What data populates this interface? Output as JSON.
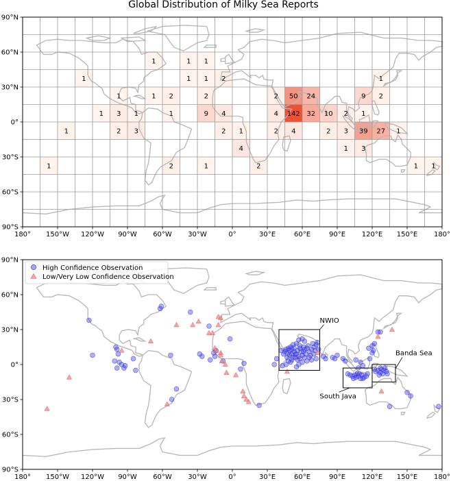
{
  "chart_data": [
    {
      "type": "heatmap",
      "title": "Global Distribution of Milky Sea Reports",
      "xlabel": "",
      "ylabel": "",
      "xlim": [
        -180,
        180
      ],
      "ylim": [
        -90,
        90
      ],
      "cell_size_deg": 15,
      "x_ticks": [
        "180°",
        "150°W",
        "120°W",
        "90°W",
        "60°W",
        "30°W",
        "0°",
        "30°E",
        "60°E",
        "90°E",
        "120°E",
        "150°E",
        "180°"
      ],
      "y_ticks": [
        "90°N",
        "60°N",
        "30°N",
        "0°",
        "30°S",
        "60°S",
        "90°S"
      ],
      "max_count": 142,
      "cells": [
        {
          "lon0": -75,
          "lat0": 45,
          "count": 1
        },
        {
          "lon0": -45,
          "lat0": 45,
          "count": 1
        },
        {
          "lon0": -30,
          "lat0": 45,
          "count": 1
        },
        {
          "lon0": -135,
          "lat0": 30,
          "count": 1
        },
        {
          "lon0": -45,
          "lat0": 30,
          "count": 1
        },
        {
          "lon0": -30,
          "lat0": 30,
          "count": 1
        },
        {
          "lon0": -15,
          "lat0": 30,
          "count": 2
        },
        {
          "lon0": 120,
          "lat0": 30,
          "count": 1
        },
        {
          "lon0": -105,
          "lat0": 15,
          "count": 1
        },
        {
          "lon0": -75,
          "lat0": 15,
          "count": 1
        },
        {
          "lon0": -60,
          "lat0": 15,
          "count": 2
        },
        {
          "lon0": -30,
          "lat0": 15,
          "count": 2
        },
        {
          "lon0": 30,
          "lat0": 15,
          "count": 2
        },
        {
          "lon0": 45,
          "lat0": 15,
          "count": 50
        },
        {
          "lon0": 60,
          "lat0": 15,
          "count": 24
        },
        {
          "lon0": 105,
          "lat0": 15,
          "count": 9
        },
        {
          "lon0": 120,
          "lat0": 15,
          "count": 2
        },
        {
          "lon0": -120,
          "lat0": 0,
          "count": 1
        },
        {
          "lon0": -105,
          "lat0": 0,
          "count": 3
        },
        {
          "lon0": -90,
          "lat0": 0,
          "count": 1
        },
        {
          "lon0": -60,
          "lat0": 0,
          "count": 1
        },
        {
          "lon0": -30,
          "lat0": 0,
          "count": 9
        },
        {
          "lon0": -15,
          "lat0": 0,
          "count": 4
        },
        {
          "lon0": 30,
          "lat0": 0,
          "count": 4
        },
        {
          "lon0": 45,
          "lat0": 0,
          "count": 142
        },
        {
          "lon0": 60,
          "lat0": 0,
          "count": 32
        },
        {
          "lon0": 75,
          "lat0": 0,
          "count": 10
        },
        {
          "lon0": 90,
          "lat0": 0,
          "count": 2
        },
        {
          "lon0": 105,
          "lat0": 0,
          "count": 1
        },
        {
          "lon0": -150,
          "lat0": -15,
          "count": 1
        },
        {
          "lon0": -105,
          "lat0": -15,
          "count": 2
        },
        {
          "lon0": -90,
          "lat0": -15,
          "count": 3
        },
        {
          "lon0": -15,
          "lat0": -15,
          "count": 2
        },
        {
          "lon0": 0,
          "lat0": -15,
          "count": 1
        },
        {
          "lon0": 30,
          "lat0": -15,
          "count": 2
        },
        {
          "lon0": 45,
          "lat0": -15,
          "count": 4
        },
        {
          "lon0": 75,
          "lat0": -15,
          "count": 2
        },
        {
          "lon0": 90,
          "lat0": -15,
          "count": 3
        },
        {
          "lon0": 105,
          "lat0": -15,
          "count": 39
        },
        {
          "lon0": 120,
          "lat0": -15,
          "count": 27
        },
        {
          "lon0": 135,
          "lat0": -15,
          "count": 1
        },
        {
          "lon0": 0,
          "lat0": -30,
          "count": 4
        },
        {
          "lon0": 90,
          "lat0": -30,
          "count": 1
        },
        {
          "lon0": 105,
          "lat0": -30,
          "count": 3
        },
        {
          "lon0": -165,
          "lat0": -45,
          "count": 1
        },
        {
          "lon0": -60,
          "lat0": -45,
          "count": 2
        },
        {
          "lon0": -30,
          "lat0": -45,
          "count": 1
        },
        {
          "lon0": 15,
          "lat0": -45,
          "count": 2
        },
        {
          "lon0": 150,
          "lat0": -45,
          "count": 1
        },
        {
          "lon0": 165,
          "lat0": -45,
          "count": 1
        }
      ]
    },
    {
      "type": "scatter",
      "title": "",
      "xlim": [
        -180,
        180
      ],
      "ylim": [
        -90,
        90
      ],
      "x_ticks": [
        "180°",
        "150°W",
        "120°W",
        "90°W",
        "60°W",
        "30°W",
        "0°",
        "30°E",
        "60°E",
        "90°E",
        "120°E",
        "150°E",
        "180°"
      ],
      "y_ticks": [
        "90°N",
        "60°N",
        "30°N",
        "0°",
        "30°S",
        "60°S",
        "90°S"
      ],
      "legend": {
        "location": "upper-left",
        "entries": [
          "High Confidence Observation",
          "Low/Very Low Confidence Observation"
        ]
      },
      "series": [
        {
          "name": "High Confidence Observation",
          "marker": "circle",
          "color": "#3a3ae8",
          "points": [
            [
              -123,
              38
            ],
            [
              -120,
              8
            ],
            [
              -100,
              15
            ],
            [
              -99,
              13
            ],
            [
              -98,
              9
            ],
            [
              -101,
              3
            ],
            [
              -97,
              2
            ],
            [
              -95,
              0
            ],
            [
              -92,
              -1
            ],
            [
              -99,
              -3
            ],
            [
              -93,
              -3
            ],
            [
              -85,
              5
            ],
            [
              -83,
              -5
            ],
            [
              -61,
              50
            ],
            [
              -62,
              48
            ],
            [
              -53,
              8
            ],
            [
              -48,
              -21
            ],
            [
              -52,
              -30
            ],
            [
              -36,
              45
            ],
            [
              -20,
              33
            ],
            [
              -28,
              9
            ],
            [
              -26,
              7
            ],
            [
              -19,
              4
            ],
            [
              -14,
              12
            ],
            [
              -16,
              10
            ],
            [
              -15,
              7
            ],
            [
              -2,
              22
            ],
            [
              -8,
              3
            ],
            [
              10,
              1
            ],
            [
              7,
              -4
            ],
            [
              23,
              -35
            ],
            [
              38,
              5
            ],
            [
              36,
              0
            ],
            [
              46,
              13
            ],
            [
              50,
              15
            ],
            [
              52,
              17
            ],
            [
              55,
              18
            ],
            [
              57,
              21
            ],
            [
              60,
              22
            ],
            [
              62,
              20
            ],
            [
              58,
              14
            ],
            [
              56,
              12
            ],
            [
              53,
              11
            ],
            [
              51,
              9
            ],
            [
              49,
              8
            ],
            [
              47,
              6
            ],
            [
              48,
              3
            ],
            [
              51,
              4
            ],
            [
              54,
              6
            ],
            [
              57,
              7
            ],
            [
              60,
              8
            ],
            [
              63,
              9
            ],
            [
              66,
              11
            ],
            [
              68,
              13
            ],
            [
              70,
              15
            ],
            [
              72,
              17
            ],
            [
              73,
              19
            ],
            [
              69,
              18
            ],
            [
              65,
              16
            ],
            [
              62,
              13
            ],
            [
              59,
              11
            ],
            [
              55,
              9
            ],
            [
              52,
              6
            ],
            [
              50,
              2
            ],
            [
              46,
              0
            ],
            [
              43,
              -1
            ],
            [
              45,
              11
            ],
            [
              47,
              10
            ],
            [
              49,
              12
            ],
            [
              53,
              14
            ],
            [
              58,
              16
            ],
            [
              61,
              15
            ],
            [
              64,
              14
            ],
            [
              67,
              8
            ],
            [
              70,
              9
            ],
            [
              72,
              5
            ],
            [
              68,
              4
            ],
            [
              64,
              3
            ],
            [
              60,
              2
            ],
            [
              57,
              0
            ],
            [
              55,
              -2
            ],
            [
              51,
              13
            ],
            [
              54,
              9
            ],
            [
              56,
              4
            ],
            [
              62,
              6
            ],
            [
              66,
              6
            ],
            [
              71,
              12
            ],
            [
              74,
              13
            ],
            [
              48,
              14
            ],
            [
              44,
              9
            ],
            [
              42,
              12
            ],
            [
              58,
              5
            ],
            [
              61,
              11
            ],
            [
              78,
              7
            ],
            [
              80,
              5
            ],
            [
              86,
              6
            ],
            [
              88,
              5
            ],
            [
              90,
              8
            ],
            [
              95,
              5
            ],
            [
              97,
              3
            ],
            [
              106,
              4
            ],
            [
              110,
              2
            ],
            [
              112,
              -1
            ],
            [
              108,
              -3
            ],
            [
              99,
              -8
            ],
            [
              101,
              -9
            ],
            [
              103,
              -10
            ],
            [
              105,
              -9
            ],
            [
              106,
              -11
            ],
            [
              108,
              -10
            ],
            [
              110,
              -12
            ],
            [
              111,
              -9
            ],
            [
              113,
              -11
            ],
            [
              115,
              -10
            ],
            [
              116,
              -8
            ],
            [
              104,
              -12
            ],
            [
              107,
              -8
            ],
            [
              109,
              -8
            ],
            [
              112,
              -12
            ],
            [
              123,
              -6
            ],
            [
              125,
              -5
            ],
            [
              127,
              -7
            ],
            [
              128,
              -4
            ],
            [
              130,
              -5
            ],
            [
              132,
              -6
            ],
            [
              126,
              -9
            ],
            [
              129,
              -8
            ],
            [
              131,
              -3
            ],
            [
              133,
              -8
            ],
            [
              122,
              -4
            ],
            [
              127,
              -3
            ],
            [
              118,
              5
            ],
            [
              120,
              16
            ],
            [
              122,
              18
            ],
            [
              121,
              12
            ],
            [
              117,
              14
            ],
            [
              125,
              28
            ],
            [
              127,
              28
            ],
            [
              120,
              10
            ],
            [
              150,
              -24
            ],
            [
              135,
              -36
            ],
            [
              153,
              -27
            ],
            [
              177,
              -36
            ]
          ]
        },
        {
          "name": "Low/Very Low Confidence Observation",
          "marker": "triangle",
          "color": "#f08080",
          "points": [
            [
              -159,
              -38
            ],
            [
              -140,
              -11
            ],
            [
              -95,
              12
            ],
            [
              -70,
              20
            ],
            [
              -56,
              -34
            ],
            [
              -48,
              34
            ],
            [
              -34,
              34
            ],
            [
              -29,
              37
            ],
            [
              -20,
              27
            ],
            [
              -17,
              27
            ],
            [
              -12,
              34
            ],
            [
              -12,
              41
            ],
            [
              -10,
              40
            ],
            [
              -14,
              12
            ],
            [
              -15,
              14
            ],
            [
              -10,
              10
            ],
            [
              -9,
              3
            ],
            [
              -5,
              -7
            ],
            [
              -6,
              0
            ],
            [
              -10,
              8
            ],
            [
              3,
              -9
            ],
            [
              9,
              -23
            ],
            [
              10,
              -27
            ],
            [
              12,
              -30
            ],
            [
              14,
              -32
            ],
            [
              47,
              -6
            ],
            [
              73,
              10
            ],
            [
              125,
              24
            ],
            [
              137,
              30
            ],
            [
              128,
              -23
            ]
          ]
        }
      ],
      "annotations": [
        {
          "label": "NWIO",
          "box": {
            "lon": [
              40,
              75
            ],
            "lat": [
              -5,
              30
            ]
          },
          "text_pos": [
            75,
            36
          ]
        },
        {
          "label": "South Java",
          "box": {
            "lon": [
              95,
              120
            ],
            "lat": [
              -20,
              -3
            ]
          },
          "text_pos": [
            75,
            -29
          ]
        },
        {
          "label": "Banda Sea",
          "box": {
            "lon": [
              120,
              140
            ],
            "lat": [
              -15,
              0
            ]
          },
          "text_pos": [
            140,
            8
          ]
        }
      ]
    }
  ]
}
